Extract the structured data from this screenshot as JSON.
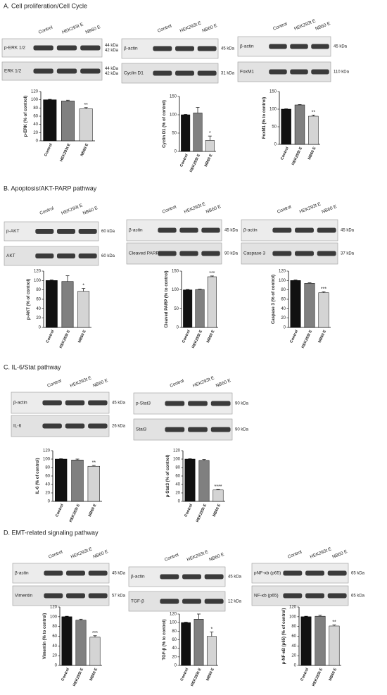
{
  "sections": [
    {
      "title": "A. Cell proliferation/Cell Cycle",
      "panels": [
        {
          "blots": [
            {
              "label": "p-ERK 1/2",
              "markers": [
                "44 kDa",
                "42 kDa"
              ]
            },
            {
              "label": "ERK 1/2",
              "markers": [
                "44 kDa",
                "42 kDa"
              ]
            }
          ]
        },
        {
          "blots": [
            {
              "label": "β-actin",
              "markers": [
                "45 kDa"
              ]
            },
            {
              "label": "Cyclin D1",
              "markers": [
                "31 kDa"
              ]
            }
          ]
        },
        {
          "blots": [
            {
              "label": "β-actin",
              "markers": [
                "45 kDa"
              ]
            },
            {
              "label": "FoxM1",
              "markers": [
                "110 kDa"
              ]
            }
          ]
        }
      ]
    },
    {
      "title": "B. Apoptosis/AKT-PARP pathway",
      "panels": [
        {
          "blots": [
            {
              "label": "p-AKT",
              "markers": [
                "60 kDa"
              ]
            },
            {
              "label": "AKT",
              "markers": [
                "60 kDa"
              ]
            }
          ]
        },
        {
          "blots": [
            {
              "label": "β-actin",
              "markers": [
                "45 kDa"
              ]
            },
            {
              "label": "Cleaved PARP",
              "markers": [
                "90 kDa"
              ]
            }
          ]
        },
        {
          "blots": [
            {
              "label": "β-actin",
              "markers": [
                "45 kDa"
              ]
            },
            {
              "label": "Caspase 3",
              "markers": [
                "37 kDa"
              ]
            }
          ]
        }
      ]
    },
    {
      "title": "C. IL-6/Stat pathway",
      "panels": [
        {
          "blots": [
            {
              "label": "β-actin",
              "markers": [
                "45 kDa"
              ]
            },
            {
              "label": "IL-6",
              "markers": [
                "26 kDa"
              ]
            }
          ]
        },
        {
          "blots": [
            {
              "label": "p-Stat3",
              "markers": [
                "90 kDa"
              ]
            },
            {
              "label": "Stat3",
              "markers": [
                "90 kDa"
              ]
            }
          ]
        }
      ]
    },
    {
      "title": "D. EMT-related signaling pathway",
      "panels": [
        {
          "blots": [
            {
              "label": "β-actin",
              "markers": [
                "45 kDa"
              ]
            },
            {
              "label": "Vimentin",
              "markers": [
                "57 kDa"
              ]
            }
          ]
        },
        {
          "blots": [
            {
              "label": "β-actin",
              "markers": [
                "45 kDa"
              ]
            },
            {
              "label": "TGF-β",
              "markers": [
                "12 kDa"
              ]
            }
          ]
        },
        {
          "blots": [
            {
              "label": "pNF-κb (p65)",
              "markers": [
                "65 kDa"
              ]
            },
            {
              "label": "NF-κb (p65)",
              "markers": [
                "65 kDa"
              ]
            }
          ]
        }
      ]
    }
  ],
  "lane_labels": [
    "Control",
    "HEK293t E",
    "NB60 E"
  ],
  "chart_data": [
    {
      "type": "bar",
      "ylabel": "p-ERK (% of control)",
      "categories": [
        "Control",
        "HEK293t E",
        "NB60 E"
      ],
      "values": [
        100,
        97,
        78
      ],
      "errors": [
        1,
        2,
        3
      ],
      "colors": [
        "#111111",
        "#808080",
        "#d4d4d4"
      ],
      "ylim": [
        0,
        120
      ],
      "yticks": [
        0,
        20,
        40,
        60,
        80,
        100,
        120
      ],
      "annotations": [
        {
          "category": "NB60 E",
          "text": "**"
        }
      ]
    },
    {
      "type": "bar",
      "ylabel": "Cyclin D1 (% of control)",
      "categories": [
        "Control",
        "HEK293t E",
        "NB60 E"
      ],
      "values": [
        100,
        105,
        30
      ],
      "errors": [
        1,
        15,
        12
      ],
      "colors": [
        "#111111",
        "#808080",
        "#d4d4d4"
      ],
      "ylim": [
        0,
        150
      ],
      "yticks": [
        0,
        50,
        100,
        150
      ],
      "annotations": [
        {
          "category": "NB60 E",
          "text": "*"
        }
      ]
    },
    {
      "type": "bar",
      "ylabel": "FoxM1 (% to control)",
      "categories": [
        "Control",
        "HEK293t E",
        "NB60 E"
      ],
      "values": [
        100,
        112,
        80
      ],
      "errors": [
        1,
        1,
        3
      ],
      "colors": [
        "#111111",
        "#808080",
        "#d4d4d4"
      ],
      "ylim": [
        0,
        150
      ],
      "yticks": [
        0,
        50,
        100,
        150
      ],
      "annotations": [
        {
          "category": "NB60 E",
          "text": "**"
        }
      ]
    },
    {
      "type": "bar",
      "ylabel": "p-AKT (% of control)",
      "categories": [
        "Control",
        "HEK293t E",
        "NB60 E"
      ],
      "values": [
        100,
        98,
        77
      ],
      "errors": [
        1,
        12,
        6
      ],
      "colors": [
        "#111111",
        "#808080",
        "#d4d4d4"
      ],
      "ylim": [
        0,
        120
      ],
      "yticks": [
        0,
        20,
        40,
        60,
        80,
        100,
        120
      ],
      "annotations": [
        {
          "category": "NB60 E",
          "text": "*"
        }
      ]
    },
    {
      "type": "bar",
      "ylabel": "Cleaved PARP (% to control)",
      "categories": [
        "Control",
        "HEK293t E",
        "NB60 E"
      ],
      "values": [
        100,
        101,
        135
      ],
      "errors": [
        1,
        1,
        2
      ],
      "colors": [
        "#111111",
        "#808080",
        "#d4d4d4"
      ],
      "ylim": [
        0,
        150
      ],
      "yticks": [
        0,
        50,
        100,
        150
      ],
      "annotations": [
        {
          "category": "NB60 E",
          "text": "***"
        }
      ]
    },
    {
      "type": "bar",
      "ylabel": "Caspase 3 (% of control)",
      "categories": [
        "Control",
        "HEK293t E",
        "NB60 E"
      ],
      "values": [
        100,
        94,
        74
      ],
      "errors": [
        1,
        1,
        2
      ],
      "colors": [
        "#111111",
        "#808080",
        "#d4d4d4"
      ],
      "ylim": [
        0,
        120
      ],
      "yticks": [
        0,
        20,
        40,
        60,
        80,
        100,
        120
      ],
      "annotations": [
        {
          "category": "NB60 E",
          "text": "***"
        }
      ]
    },
    {
      "type": "bar",
      "ylabel": "IL-6 (% of control)",
      "categories": [
        "Control",
        "HEK293t E",
        "NB60 E"
      ],
      "values": [
        100,
        98,
        83
      ],
      "errors": [
        1,
        2,
        2
      ],
      "colors": [
        "#111111",
        "#808080",
        "#d4d4d4"
      ],
      "ylim": [
        0,
        120
      ],
      "yticks": [
        0,
        20,
        40,
        60,
        80,
        100,
        120
      ],
      "annotations": [
        {
          "category": "NB60 E",
          "text": "**"
        }
      ]
    },
    {
      "type": "bar",
      "ylabel": "p-Stat3 (% of control)",
      "categories": [
        "Control",
        "HEK293t E",
        "NB60 E"
      ],
      "values": [
        100,
        97,
        27
      ],
      "errors": [
        1,
        2,
        1
      ],
      "colors": [
        "#111111",
        "#808080",
        "#d4d4d4"
      ],
      "ylim": [
        0,
        120
      ],
      "yticks": [
        0,
        20,
        40,
        60,
        80,
        100,
        120
      ],
      "annotations": [
        {
          "category": "NB60 E",
          "text": "****"
        }
      ]
    },
    {
      "type": "bar",
      "ylabel": "Vimentin (% to control)",
      "categories": [
        "Control",
        "HEK293t E",
        "NB60 E"
      ],
      "values": [
        100,
        93,
        58
      ],
      "errors": [
        1,
        2,
        3
      ],
      "colors": [
        "#111111",
        "#808080",
        "#d4d4d4"
      ],
      "ylim": [
        0,
        120
      ],
      "yticks": [
        0,
        20,
        40,
        60,
        80,
        100,
        120
      ],
      "annotations": [
        {
          "category": "NB60 E",
          "text": "***"
        }
      ]
    },
    {
      "type": "bar",
      "ylabel": "TGF-β (% to control)",
      "categories": [
        "Control",
        "HEK293t E",
        "NB60 E"
      ],
      "values": [
        100,
        108,
        68
      ],
      "errors": [
        1,
        12,
        10
      ],
      "colors": [
        "#111111",
        "#808080",
        "#d4d4d4"
      ],
      "ylim": [
        0,
        120
      ],
      "yticks": [
        0,
        20,
        40,
        60,
        80,
        100,
        120
      ],
      "annotations": [
        {
          "category": "NB60 E",
          "text": "*"
        }
      ]
    },
    {
      "type": "bar",
      "ylabel": "p-NF-κB (p65) (% of control)",
      "categories": [
        "Control",
        "HEK293t E",
        "NB60 E"
      ],
      "values": [
        100,
        101,
        81
      ],
      "errors": [
        1,
        2,
        2
      ],
      "colors": [
        "#111111",
        "#808080",
        "#d4d4d4"
      ],
      "ylim": [
        0,
        120
      ],
      "yticks": [
        0,
        20,
        40,
        60,
        80,
        100,
        120
      ],
      "annotations": [
        {
          "category": "NB60 E",
          "text": "**"
        }
      ]
    }
  ]
}
